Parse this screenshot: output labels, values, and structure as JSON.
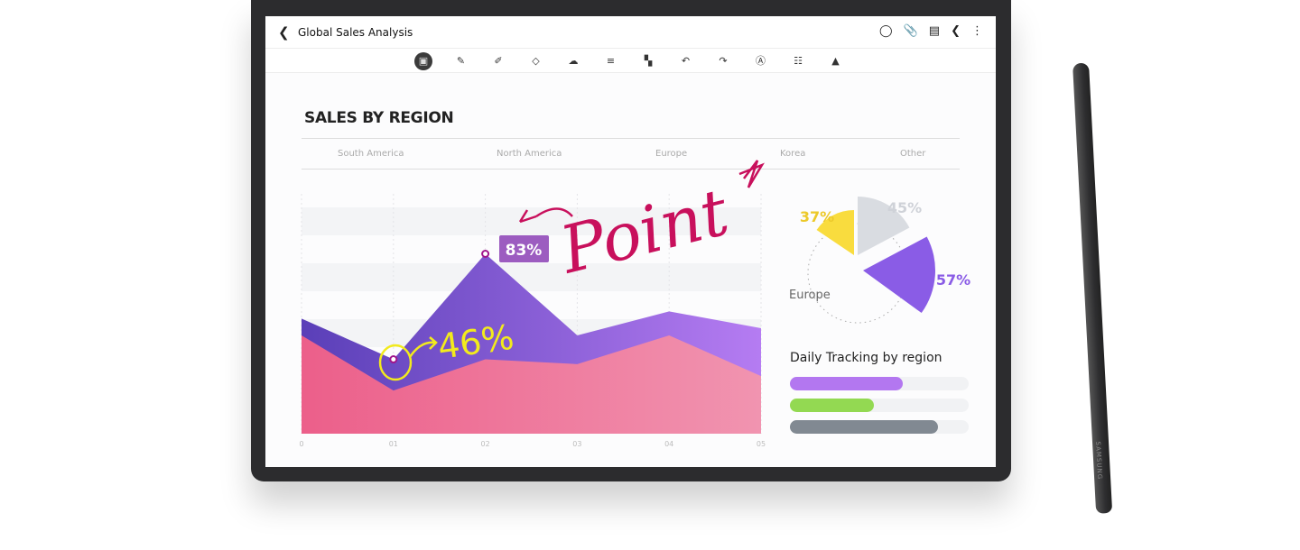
{
  "app": {
    "title": "Global Sales Analysis",
    "back_icon": "chevron-left-icon",
    "actions": [
      "reading-mode-icon",
      "attach-icon",
      "page-icon",
      "share-icon",
      "more-icon"
    ]
  },
  "toolbar": [
    "keyboard-icon",
    "pen-icon",
    "highlighter-icon",
    "eraser-icon",
    "lasso-icon",
    "text-align-icon",
    "image-text-icon",
    "undo-icon",
    "redo-icon",
    "handwriting-icon",
    "text-format-icon",
    "shapes-icon"
  ],
  "heading": "SALES BY REGION",
  "regions": [
    "South America",
    "North America",
    "Europe",
    "Korea",
    "Other"
  ],
  "chart_data": [
    {
      "type": "area",
      "x": [
        "0",
        "01",
        "02",
        "03",
        "04",
        "05"
      ],
      "series": [
        {
          "values": [
            48,
            31,
            75,
            41,
            51,
            44
          ],
          "color": "#7050c8"
        },
        {
          "values": [
            41,
            18,
            31,
            29,
            41,
            24
          ],
          "color": "#ee6c92"
        }
      ],
      "ylim": [
        0,
        100
      ],
      "grid": true,
      "annotations": [
        "83%",
        "46%",
        "Point"
      ]
    },
    {
      "type": "pie",
      "labels": [
        "37%",
        "45%",
        "57%"
      ],
      "values": [
        37,
        45,
        57
      ],
      "colors": [
        "#f9dc3e",
        "#d9dce1",
        "#8a5ce6"
      ],
      "center_label": "Europe"
    }
  ],
  "daily": {
    "title": "Daily Tracking by region",
    "bars": [
      {
        "value": 0.63,
        "color": "#b377f0"
      },
      {
        "value": 0.47,
        "color": "#93d952"
      },
      {
        "value": 0.83,
        "color": "#818992"
      }
    ]
  },
  "pen_brand": "SAMSUNG"
}
